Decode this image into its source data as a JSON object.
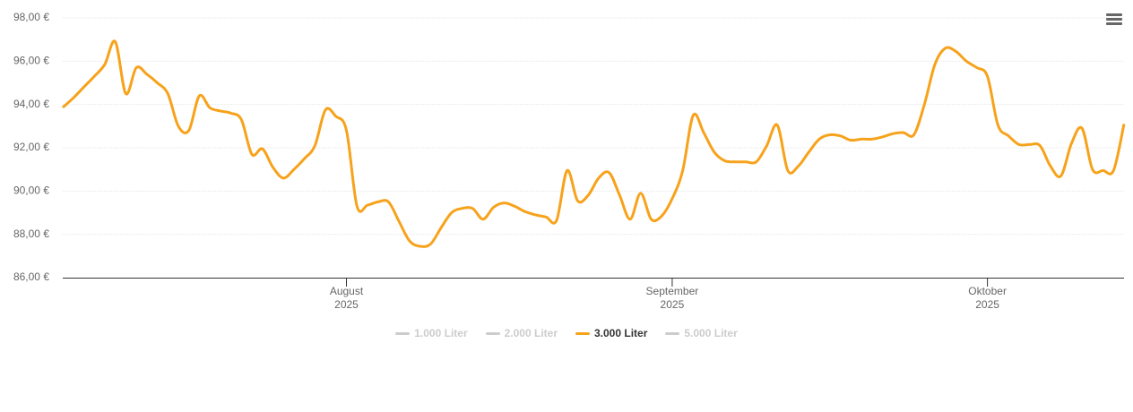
{
  "chart_data": {
    "type": "line",
    "xlim": [
      0,
      101
    ],
    "xticks": [
      {
        "value": 27,
        "label": "August\n2025"
      },
      {
        "value": 58,
        "label": "September\n2025"
      },
      {
        "value": 88,
        "label": "Oktober\n2025"
      }
    ],
    "ylim": [
      86,
      98
    ],
    "yticks": [
      {
        "value": 86,
        "label": "86,00 €"
      },
      {
        "value": 88,
        "label": "88,00 €"
      },
      {
        "value": 90,
        "label": "90,00 €"
      },
      {
        "value": 92,
        "label": "92,00 €"
      },
      {
        "value": 94,
        "label": "94,00 €"
      },
      {
        "value": 96,
        "label": "96,00 €"
      },
      {
        "value": 98,
        "label": "98,00 €"
      }
    ],
    "grid": true,
    "legend_position": "bottom",
    "series": [
      {
        "name": "1.000 Liter",
        "color": "#cccccc",
        "visible": false
      },
      {
        "name": "2.000 Liter",
        "color": "#cccccc",
        "visible": false
      },
      {
        "name": "3.000 Liter",
        "color": "#f7a21b",
        "visible": true,
        "values": [
          93.86,
          94.3,
          94.8,
          95.3,
          95.85,
          96.9,
          94.5,
          95.7,
          95.4,
          95.0,
          94.5,
          93.0,
          92.8,
          94.4,
          93.85,
          93.7,
          93.6,
          93.3,
          91.7,
          91.95,
          91.1,
          90.6,
          91.0,
          91.5,
          92.1,
          93.75,
          93.45,
          92.8,
          89.3,
          89.35,
          89.5,
          89.5,
          88.6,
          87.7,
          87.45,
          87.55,
          88.3,
          89.0,
          89.2,
          89.2,
          88.7,
          89.25,
          89.45,
          89.3,
          89.05,
          88.9,
          88.8,
          88.65,
          90.95,
          89.55,
          89.8,
          90.6,
          90.85,
          89.8,
          88.7,
          89.9,
          88.7,
          88.85,
          89.65,
          90.95,
          93.5,
          92.7,
          91.8,
          91.4,
          91.35,
          91.35,
          91.35,
          92.1,
          93.05,
          90.95,
          91.15,
          91.8,
          92.4,
          92.6,
          92.55,
          92.35,
          92.4,
          92.4,
          92.5,
          92.65,
          92.7,
          92.6,
          94.0,
          95.85,
          96.6,
          96.45,
          96.0,
          95.7,
          95.3,
          93.05,
          92.55,
          92.15,
          92.15,
          92.1,
          91.15,
          90.7,
          92.2,
          92.9,
          91.0,
          90.95,
          90.95,
          93.1
        ]
      },
      {
        "name": "5.000 Liter",
        "color": "#cccccc",
        "visible": false
      }
    ]
  }
}
